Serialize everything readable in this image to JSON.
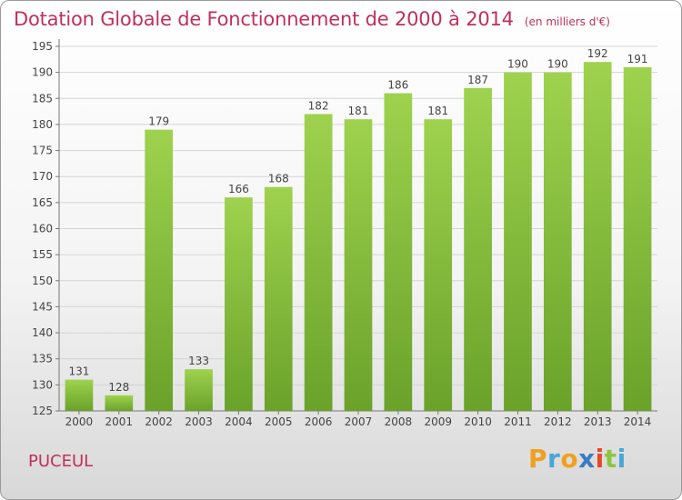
{
  "title": "Dotation Globale de Fonctionnement de 2000 à 2014",
  "subtitle": "(en milliers d'€)",
  "commune": "PUCEUL",
  "logo": {
    "letters": [
      "P",
      "r",
      "o",
      "x",
      "i",
      "t",
      "i"
    ],
    "colors": [
      "#f0a020",
      "#4aa6d8",
      "#f0a020",
      "#3a7cc0",
      "#e8462a",
      "#8cc63f",
      "#4aa6d8"
    ]
  },
  "chart_data": {
    "type": "bar",
    "title": "Dotation Globale de Fonctionnement de 2000 à 2014",
    "subtitle": "(en milliers d'€)",
    "xlabel": "",
    "ylabel": "",
    "categories": [
      "2000",
      "2001",
      "2002",
      "2003",
      "2004",
      "2005",
      "2006",
      "2007",
      "2008",
      "2009",
      "2010",
      "2011",
      "2012",
      "2013",
      "2014"
    ],
    "values": [
      131,
      128,
      179,
      133,
      166,
      168,
      182,
      181,
      186,
      181,
      187,
      190,
      190,
      192,
      191
    ],
    "ylim": [
      125,
      195
    ],
    "yticks": [
      125,
      130,
      135,
      140,
      145,
      150,
      155,
      160,
      165,
      170,
      175,
      180,
      185,
      190,
      195
    ],
    "grid": true,
    "bar_color": "#8cc63f",
    "bar_color_dark": "#6aa22a",
    "title_color": "#c0305a"
  }
}
